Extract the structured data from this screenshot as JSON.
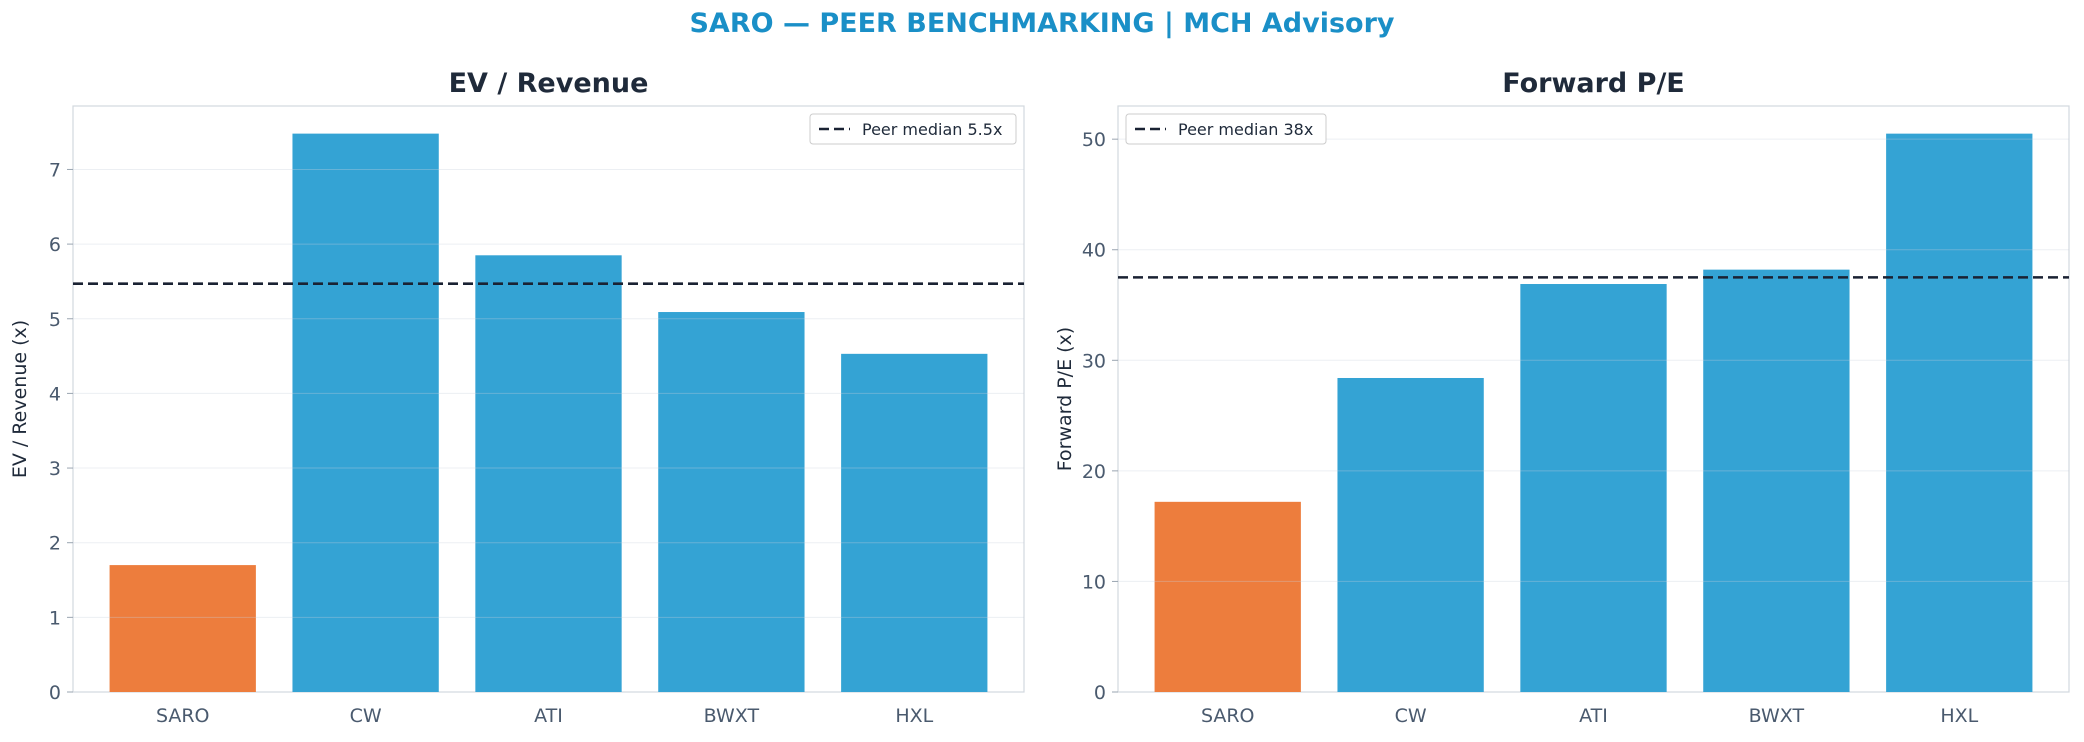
{
  "figure": {
    "title": "SARO — PEER BENCHMARKING | MCH Advisory",
    "title_color": "#1a8fc7"
  },
  "colors": {
    "highlight": "#ed7d3d",
    "peer": "#34a3d4",
    "median_line": "#1a2233",
    "axis_text": "#4a5a6e",
    "title_text": "#1f2a3a"
  },
  "chart_data": [
    {
      "type": "bar",
      "title": "EV / Revenue",
      "xlabel": "",
      "ylabel": "EV / Revenue (x)",
      "categories": [
        "SARO",
        "CW",
        "ATI",
        "BWXT",
        "HXL"
      ],
      "values": [
        1.7,
        7.48,
        5.85,
        5.09,
        4.53
      ],
      "highlight": "SARO",
      "ylim": [
        0,
        7.85
      ],
      "yticks": [
        0,
        1,
        2,
        3,
        4,
        5,
        6,
        7
      ],
      "reference_line": {
        "label": "Peer median 5.5x",
        "value": 5.47
      },
      "legend_position": "upper-right",
      "grid": true
    },
    {
      "type": "bar",
      "title": "Forward P/E",
      "xlabel": "",
      "ylabel": "Forward P/E (x)",
      "categories": [
        "SARO",
        "CW",
        "ATI",
        "BWXT",
        "HXL"
      ],
      "values": [
        17.2,
        28.4,
        36.9,
        38.2,
        50.5
      ],
      "highlight": "SARO",
      "ylim": [
        0,
        53
      ],
      "yticks": [
        0,
        10,
        20,
        30,
        40,
        50
      ],
      "reference_line": {
        "label": "Peer median 38x",
        "value": 37.5
      },
      "legend_position": "upper-left",
      "grid": true
    }
  ]
}
